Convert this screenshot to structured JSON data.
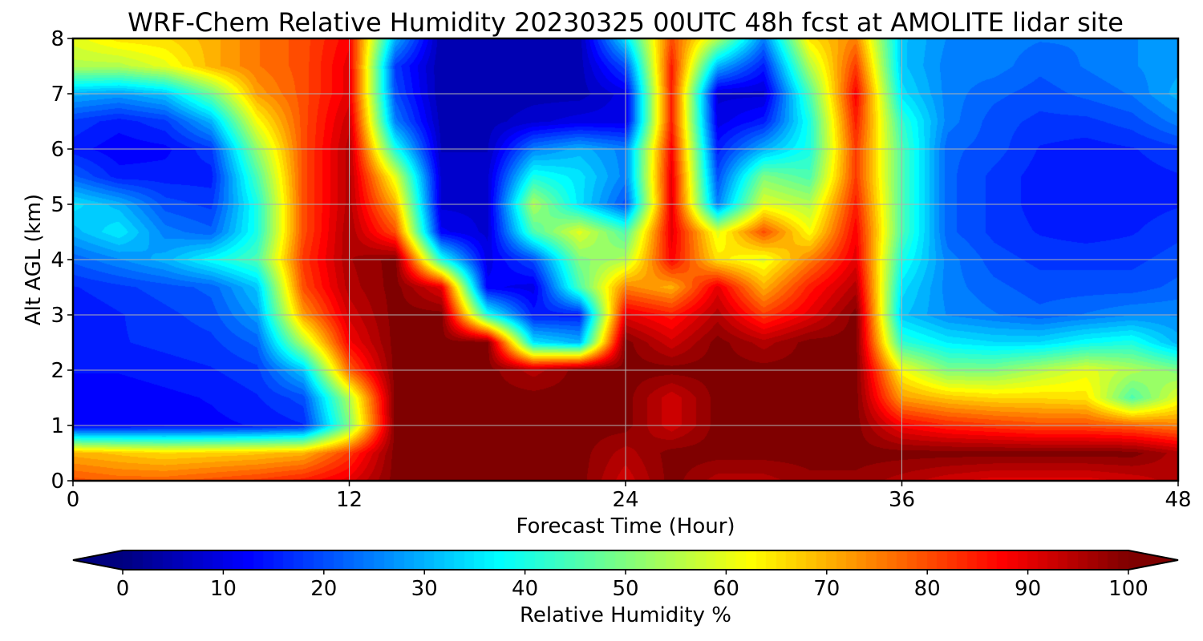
{
  "chart_data": {
    "type": "heatmap",
    "title": "WRF-Chem Relative Humidity 20230325 00UTC 48h fcst at AMOLITE lidar site",
    "xlabel": "Forecast Time (Hour)",
    "ylabel": "Alt AGL (km)",
    "xlim": [
      0,
      48
    ],
    "ylim": [
      0,
      8
    ],
    "xticks": [
      0,
      12,
      24,
      36,
      48
    ],
    "yticks": [
      0,
      1,
      2,
      3,
      4,
      5,
      6,
      7,
      8
    ],
    "grid": true,
    "colorbar": {
      "label": "Relative Humidity %",
      "min": 0,
      "max": 100,
      "ticks": [
        0,
        10,
        20,
        30,
        40,
        50,
        60,
        70,
        80,
        90,
        100
      ],
      "colormap": "jet",
      "extend": "both",
      "stops": [
        "#00007f",
        "#0000ff",
        "#007fff",
        "#00ffff",
        "#7fff7f",
        "#ffff00",
        "#ff7f00",
        "#ff0000",
        "#7f0000"
      ]
    },
    "x": [
      0,
      2,
      4,
      6,
      8,
      10,
      12,
      14,
      16,
      18,
      20,
      22,
      24,
      26,
      28,
      30,
      32,
      34,
      36,
      38,
      40,
      42,
      44,
      46,
      48
    ],
    "y": [
      0,
      0.5,
      1,
      1.5,
      2,
      2.5,
      3,
      3.5,
      4,
      4.5,
      5,
      5.5,
      6,
      6.5,
      7,
      7.5,
      8
    ],
    "z": [
      [
        80,
        78,
        78,
        80,
        82,
        85,
        90,
        100,
        100,
        100,
        100,
        100,
        92,
        100,
        95,
        95,
        98,
        98,
        95,
        92,
        90,
        90,
        90,
        92,
        95
      ],
      [
        70,
        68,
        66,
        67,
        68,
        70,
        82,
        100,
        100,
        100,
        100,
        100,
        95,
        100,
        100,
        100,
        100,
        100,
        100,
        100,
        100,
        100,
        100,
        100,
        95
      ],
      [
        12,
        12,
        13,
        13,
        14,
        16,
        50,
        100,
        100,
        100,
        100,
        100,
        100,
        92,
        100,
        100,
        100,
        100,
        88,
        84,
        82,
        80,
        80,
        78,
        75
      ],
      [
        12,
        12,
        13,
        14,
        16,
        20,
        55,
        100,
        100,
        100,
        100,
        100,
        100,
        92,
        100,
        100,
        100,
        100,
        72,
        68,
        66,
        66,
        65,
        45,
        60
      ],
      [
        14,
        14,
        15,
        16,
        18,
        32,
        78,
        100,
        100,
        100,
        95,
        100,
        100,
        100,
        100,
        100,
        100,
        100,
        62,
        50,
        50,
        55,
        60,
        55,
        50
      ],
      [
        15,
        16,
        17,
        18,
        22,
        55,
        88,
        100,
        100,
        100,
        35,
        30,
        100,
        92,
        100,
        95,
        100,
        100,
        42,
        36,
        34,
        34,
        38,
        40,
        30
      ],
      [
        14,
        16,
        18,
        20,
        28,
        72,
        92,
        100,
        100,
        40,
        15,
        15,
        90,
        85,
        95,
        82,
        90,
        100,
        32,
        26,
        24,
        22,
        24,
        26,
        26
      ],
      [
        16,
        18,
        20,
        22,
        32,
        80,
        95,
        100,
        90,
        12,
        10,
        45,
        75,
        70,
        90,
        70,
        85,
        95,
        35,
        25,
        22,
        20,
        20,
        20,
        22
      ],
      [
        22,
        26,
        30,
        38,
        45,
        82,
        96,
        100,
        40,
        10,
        20,
        50,
        55,
        88,
        65,
        60,
        75,
        90,
        40,
        25,
        20,
        18,
        18,
        18,
        20
      ],
      [
        30,
        36,
        25,
        22,
        40,
        80,
        96,
        80,
        12,
        8,
        45,
        60,
        45,
        90,
        60,
        80,
        62,
        88,
        45,
        22,
        18,
        16,
        15,
        16,
        18
      ],
      [
        35,
        30,
        20,
        18,
        40,
        80,
        95,
        70,
        8,
        8,
        55,
        35,
        20,
        90,
        25,
        60,
        55,
        85,
        45,
        22,
        18,
        15,
        14,
        15,
        16
      ],
      [
        22,
        15,
        15,
        15,
        45,
        80,
        95,
        60,
        8,
        8,
        40,
        35,
        25,
        90,
        20,
        50,
        45,
        82,
        45,
        22,
        18,
        15,
        14,
        15,
        16
      ],
      [
        15,
        12,
        13,
        18,
        52,
        80,
        95,
        40,
        6,
        6,
        25,
        30,
        25,
        88,
        15,
        30,
        40,
        82,
        45,
        22,
        20,
        16,
        15,
        16,
        18
      ],
      [
        18,
        15,
        18,
        30,
        62,
        80,
        93,
        25,
        5,
        5,
        8,
        10,
        10,
        85,
        10,
        15,
        40,
        85,
        42,
        25,
        20,
        18,
        18,
        20,
        25
      ],
      [
        30,
        28,
        32,
        48,
        72,
        80,
        90,
        20,
        4,
        4,
        5,
        5,
        10,
        85,
        8,
        8,
        45,
        88,
        35,
        25,
        22,
        20,
        22,
        24,
        30
      ],
      [
        55,
        55,
        60,
        70,
        76,
        80,
        90,
        18,
        4,
        4,
        4,
        5,
        20,
        85,
        30,
        15,
        55,
        82,
        32,
        25,
        25,
        22,
        24,
        26,
        28
      ],
      [
        60,
        65,
        66,
        70,
        76,
        80,
        88,
        30,
        4,
        4,
        4,
        5,
        35,
        80,
        55,
        25,
        65,
        75,
        32,
        26,
        25,
        24,
        24,
        26,
        28
      ]
    ]
  }
}
